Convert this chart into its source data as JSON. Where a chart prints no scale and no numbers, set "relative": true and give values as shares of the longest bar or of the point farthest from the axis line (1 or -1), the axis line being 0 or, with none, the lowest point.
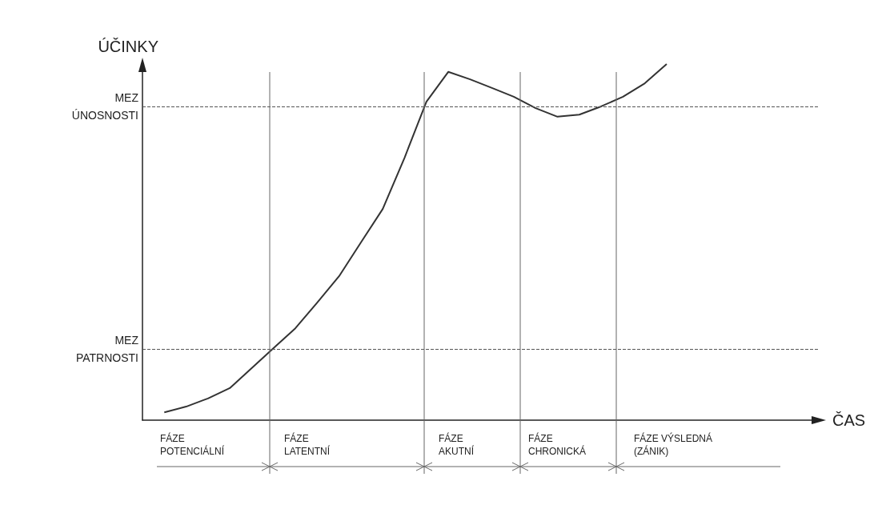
{
  "chart_data": {
    "type": "line",
    "relative": true,
    "xlabel": "ČAS",
    "ylabel": "ÚČINKY",
    "grid": false,
    "marker": "none",
    "line_style": "solid",
    "categories": [
      null,
      null,
      null,
      null,
      null,
      null,
      null,
      null,
      null,
      null,
      null,
      null,
      null,
      null,
      null,
      null,
      null,
      null,
      null,
      null,
      null,
      null,
      null,
      null,
      null,
      null,
      null,
      null,
      null,
      null,
      null,
      null
    ],
    "series": [
      {
        "color": "#333333",
        "values": [
          null,
          0.022,
          0.038,
          0.061,
          0.09,
          0.146,
          0.202,
          0.258,
          0.33,
          0.404,
          0.499,
          0.593,
          0.737,
          0.894,
          0.978,
          0.957,
          0.933,
          0.908,
          0.876,
          0.852,
          0.858,
          0.881,
          0.908,
          0.946,
          1,
          null,
          null,
          null,
          null,
          null,
          null,
          null
        ]
      }
    ],
    "ref_lines": [
      {
        "axis": "y",
        "value": 0.883,
        "label": "MEZ\nÚNOSNOSTI",
        "line_style": "dashed",
        "color": "#555555"
      },
      {
        "axis": "y",
        "value": 0.198,
        "label": "MEZ\nPATRNOSTI",
        "line_style": "dashed",
        "color": "#555555"
      }
    ],
    "annotations": [
      "FÁZE\nPOTENCIÁLNÍ",
      "FÁZE\nLATENTNÍ",
      "FÁZE\nAKUTNÍ",
      "FÁZE\nCHRONICKÁ",
      "FÁZE VÝSLEDNÁ\n(ZÁNIK)"
    ]
  }
}
